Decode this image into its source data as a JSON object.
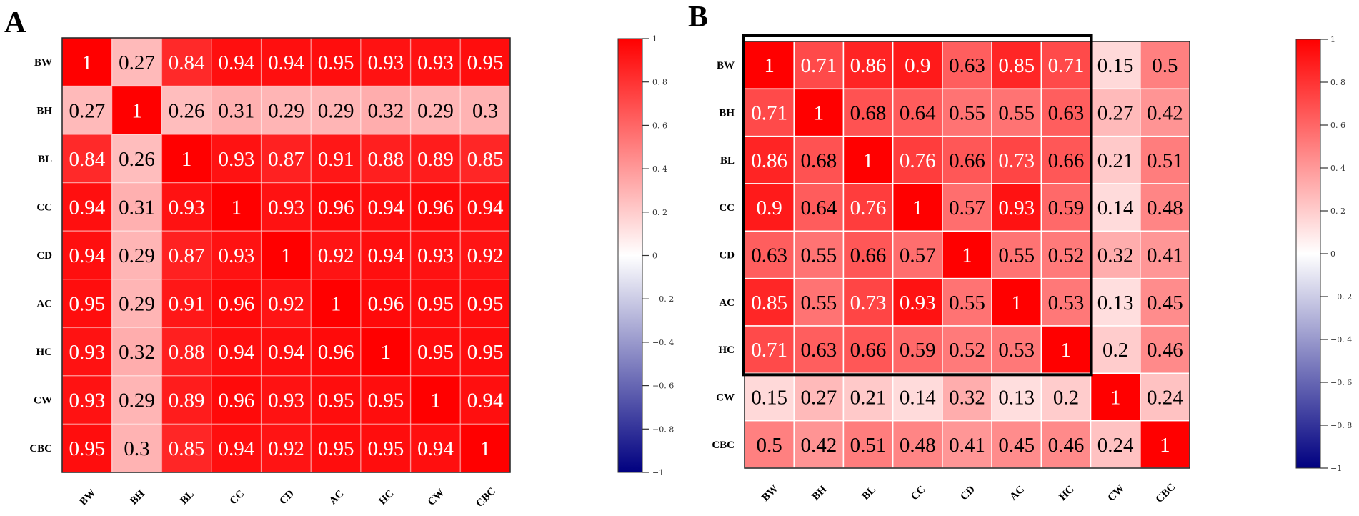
{
  "colors": {
    "max": "#ff0000",
    "mid": "#ffffff",
    "min": "#000080",
    "grid_line": "#ffffff",
    "highlight_box": "#000000"
  },
  "chart_data": [
    {
      "type": "heatmap",
      "panel_label": "A",
      "rows": [
        "BW",
        "BH",
        "BL",
        "CC",
        "CD",
        "AC",
        "HC",
        "CW",
        "CBC"
      ],
      "cols": [
        "BW",
        "BH",
        "BL",
        "CC",
        "CD",
        "AC",
        "HC",
        "CW",
        "CBC"
      ],
      "values": [
        [
          1,
          0.27,
          0.84,
          0.94,
          0.94,
          0.95,
          0.93,
          0.93,
          0.95
        ],
        [
          0.27,
          1,
          0.26,
          0.31,
          0.29,
          0.29,
          0.32,
          0.29,
          0.3
        ],
        [
          0.84,
          0.26,
          1,
          0.93,
          0.87,
          0.91,
          0.88,
          0.89,
          0.85
        ],
        [
          0.94,
          0.31,
          0.93,
          1,
          0.93,
          0.96,
          0.94,
          0.96,
          0.94
        ],
        [
          0.94,
          0.29,
          0.87,
          0.93,
          1,
          0.92,
          0.94,
          0.93,
          0.92
        ],
        [
          0.95,
          0.29,
          0.91,
          0.96,
          0.92,
          1,
          0.96,
          0.95,
          0.95
        ],
        [
          0.93,
          0.32,
          0.88,
          0.94,
          0.94,
          0.96,
          1,
          0.95,
          0.95
        ],
        [
          0.93,
          0.29,
          0.89,
          0.96,
          0.93,
          0.95,
          0.95,
          1,
          0.94
        ],
        [
          0.95,
          0.3,
          0.85,
          0.94,
          0.92,
          0.95,
          0.95,
          0.94,
          1
        ]
      ],
      "colorbar": {
        "range": [
          -1,
          1
        ],
        "ticks": [
          "1",
          "0. 8",
          "0. 6",
          "0. 4",
          "0. 2",
          "0",
          "−0. 2",
          "−0. 4",
          "−0. 6",
          "−0. 8",
          "−1"
        ],
        "tick_values": [
          1,
          0.8,
          0.6,
          0.4,
          0.2,
          0,
          -0.2,
          -0.4,
          -0.6,
          -0.8,
          -1
        ]
      },
      "highlight_block": null
    },
    {
      "type": "heatmap",
      "panel_label": "B",
      "rows": [
        "BW",
        "BH",
        "BL",
        "CC",
        "CD",
        "AC",
        "HC",
        "CW",
        "CBC"
      ],
      "cols": [
        "BW",
        "BH",
        "BL",
        "CC",
        "CD",
        "AC",
        "HC",
        "CW",
        "CBC"
      ],
      "values": [
        [
          1,
          0.71,
          0.86,
          0.9,
          0.63,
          0.85,
          0.71,
          0.15,
          0.5
        ],
        [
          0.71,
          1,
          0.68,
          0.64,
          0.55,
          0.55,
          0.63,
          0.27,
          0.42
        ],
        [
          0.86,
          0.68,
          1,
          0.76,
          0.66,
          0.73,
          0.66,
          0.21,
          0.51
        ],
        [
          0.9,
          0.64,
          0.76,
          1,
          0.57,
          0.93,
          0.59,
          0.14,
          0.48
        ],
        [
          0.63,
          0.55,
          0.66,
          0.57,
          1,
          0.55,
          0.52,
          0.32,
          0.41
        ],
        [
          0.85,
          0.55,
          0.73,
          0.93,
          0.55,
          1,
          0.53,
          0.13,
          0.45
        ],
        [
          0.71,
          0.63,
          0.66,
          0.59,
          0.52,
          0.53,
          1,
          0.2,
          0.46
        ],
        [
          0.15,
          0.27,
          0.21,
          0.14,
          0.32,
          0.13,
          0.2,
          1,
          0.24
        ],
        [
          0.5,
          0.42,
          0.51,
          0.48,
          0.41,
          0.45,
          0.46,
          0.24,
          1
        ]
      ],
      "colorbar": {
        "range": [
          -1,
          1
        ],
        "ticks": [
          "1",
          "0. 8",
          "0. 6",
          "0. 4",
          "0. 2",
          "0",
          "−0. 2",
          "−0. 4",
          "−0. 6",
          "−0. 8",
          "−1"
        ],
        "tick_values": [
          1,
          0.8,
          0.6,
          0.4,
          0.2,
          0,
          -0.2,
          -0.4,
          -0.6,
          -0.8,
          -1
        ]
      },
      "highlight_block": {
        "from_index": 0,
        "to_index": 6
      }
    }
  ]
}
